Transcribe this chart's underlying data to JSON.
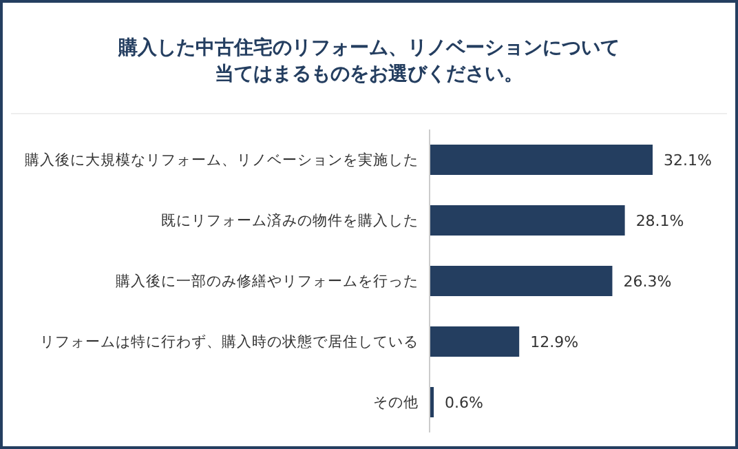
{
  "chart_data": {
    "type": "bar",
    "orientation": "horizontal",
    "title": "購入した中古住宅のリフォーム、リノベーションについて当てはまるものをお選びください。",
    "categories": [
      "購入後に大規模なリフォーム、リノベーションを実施した",
      "既にリフォーム済みの物件を購入した",
      "購入後に一部のみ修繕やリフォームを行った",
      "リフォームは特に行わず、購入時の状態で居住している",
      "その他"
    ],
    "values": [
      32.1,
      28.1,
      26.3,
      12.9,
      0.6
    ],
    "value_labels": [
      "32.1%",
      "28.1%",
      "26.3%",
      "12.9%",
      "0.6%"
    ],
    "color": "#243e60",
    "tick_labels": "y"
  }
}
